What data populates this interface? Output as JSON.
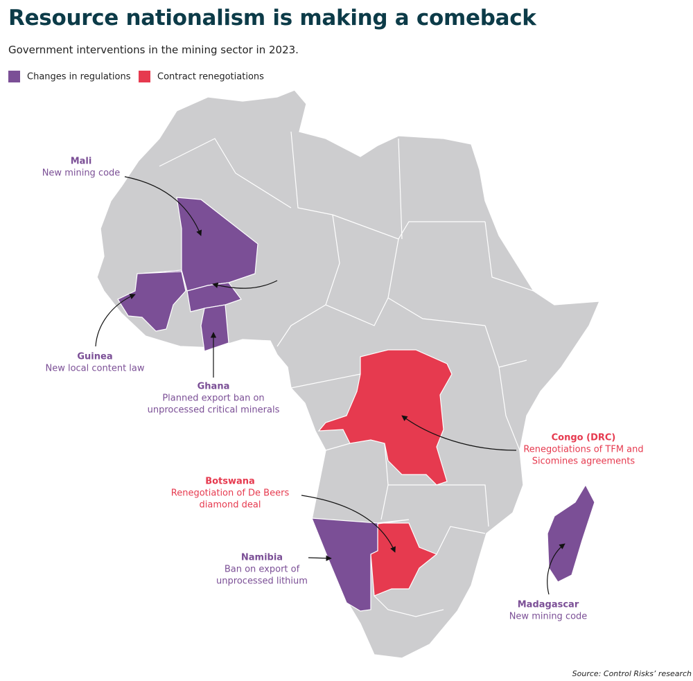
{
  "title": "Resource nationalism is making a comeback",
  "subtitle": "Government interventions in the mining sector in 2023.",
  "legend": [
    {
      "label": "Changes in regulations",
      "color": "#7b4f96"
    },
    {
      "label": "Contract renegotiations",
      "color": "#e63a4f"
    }
  ],
  "annotations": [
    {
      "country": "Mali",
      "text": [
        "New mining code"
      ],
      "color": "#7b4f96"
    },
    {
      "country": "Guinea",
      "text": [
        "New local content law"
      ],
      "color": "#7b4f96"
    },
    {
      "country": "Ghana",
      "text": [
        "Planned export ban on",
        "unprocessed critical minerals"
      ],
      "color": "#7b4f96"
    },
    {
      "country": "Congo (DRC)",
      "text": [
        "Renegotiations of TFM and",
        "Sicomines agreements"
      ],
      "color": "#e63a4f"
    },
    {
      "country": "Botswana",
      "text": [
        "Renegotiation of De Beers",
        "diamond deal"
      ],
      "color": "#e63a4f"
    },
    {
      "country": "Namibia",
      "text": [
        "Ban on export of",
        "unprocessed lithium"
      ],
      "color": "#7b4f96"
    },
    {
      "country": "Madagascar",
      "text": [
        "New mining code"
      ],
      "color": "#7b4f96"
    }
  ],
  "source": "Source: Control Risks’ research"
}
